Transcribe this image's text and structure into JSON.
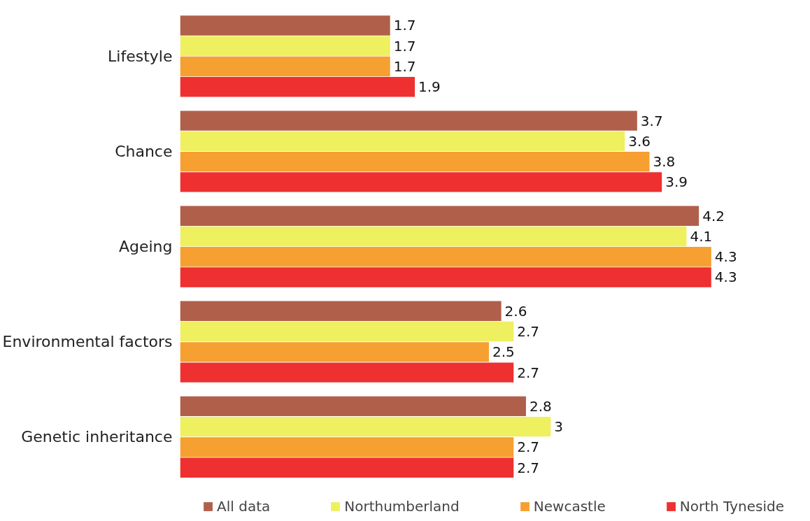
{
  "chart_data": {
    "type": "bar",
    "orientation": "horizontal",
    "categories": [
      "Lifestyle",
      "Chance",
      "Ageing",
      "Environmental factors",
      "Genetic inheritance"
    ],
    "series": [
      {
        "name": "All data",
        "color": "#b0604a",
        "values": [
          1.7,
          3.7,
          4.2,
          2.6,
          2.8
        ]
      },
      {
        "name": "Northumberland",
        "color": "#eef060",
        "values": [
          1.7,
          3.6,
          4.1,
          2.7,
          3
        ]
      },
      {
        "name": "Newcastle",
        "color": "#f5a030",
        "values": [
          1.7,
          3.8,
          4.3,
          2.5,
          2.7
        ]
      },
      {
        "name": "North Tyneside",
        "color": "#ee3030",
        "values": [
          1.9,
          3.9,
          4.3,
          2.7,
          2.7
        ]
      }
    ],
    "data_labels": true,
    "grid": false,
    "legend": "bottom"
  }
}
